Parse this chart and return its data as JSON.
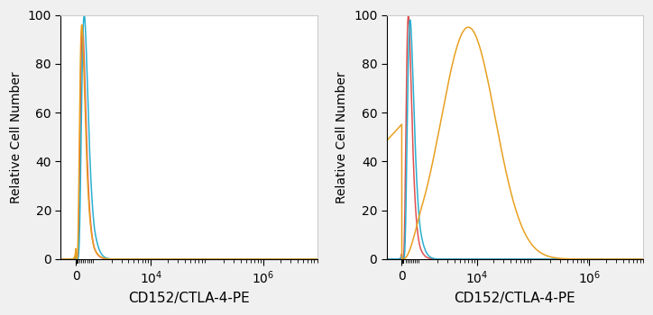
{
  "xlabel": "CD152/CTLA-4-PE",
  "ylabel": "Relative Cell Number",
  "ylim": [
    0,
    100
  ],
  "background_color": "#f0f0f0",
  "left_panel": {
    "curves": [
      {
        "color": "#e05050",
        "peak_log": 2.55,
        "peak_y": 95,
        "sigma": 0.18
      },
      {
        "color": "#29b0d0",
        "peak_log": 2.65,
        "peak_y": 100,
        "sigma": 0.17
      },
      {
        "color": "#e8a020",
        "peak_log": 2.5,
        "peak_y": 96,
        "sigma": 0.2
      }
    ]
  },
  "right_panel": {
    "curves": [
      {
        "color": "#e05050",
        "peak_log": 2.55,
        "peak_y": 100,
        "sigma": 0.18
      },
      {
        "color": "#29b0d0",
        "peak_log": 2.65,
        "peak_y": 98,
        "sigma": 0.17
      },
      {
        "color": "#e8a020",
        "peak_log": 3.85,
        "peak_y": 95,
        "sigma": 0.48
      }
    ]
  },
  "linthresh": 1000,
  "linscale": 0.3,
  "xlim_low": -800,
  "xlim_high": 3000000,
  "xticks": [
    0,
    10000,
    1000000
  ],
  "xticklabels": [
    "0",
    "$10^4$",
    "$10^6$"
  ],
  "yticks": [
    0,
    20,
    40,
    60,
    80,
    100
  ]
}
